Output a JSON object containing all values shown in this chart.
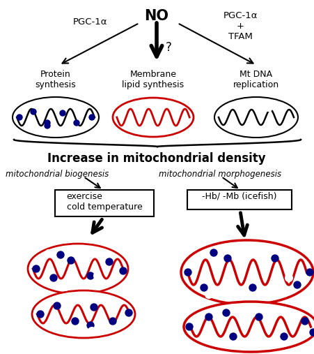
{
  "bg_color": "#ffffff",
  "text_color": "#000000",
  "red_color": "#cc0000",
  "blue_color": "#000080",
  "green_color": "#006400",
  "black": "#000000",
  "no_label": "NO",
  "pgc1a_left": "PGC-1α",
  "pgc1a_right": "PGC-1α\n+\nTFAM",
  "label_protein": "Protein\nsynthesis",
  "label_membrane": "Membrane\nlipid synthesis",
  "label_mtdna": "Mt DNA\nreplication",
  "label_density": "Increase in mitochondrial density",
  "label_biogenesis": "mitochondrial biogenesis",
  "label_morphogenesis": "mitochondrial morphogenesis",
  "label_exercise": "exercise\ncold temperature",
  "label_icefish": "-Hb/ -Mb (icefish)"
}
